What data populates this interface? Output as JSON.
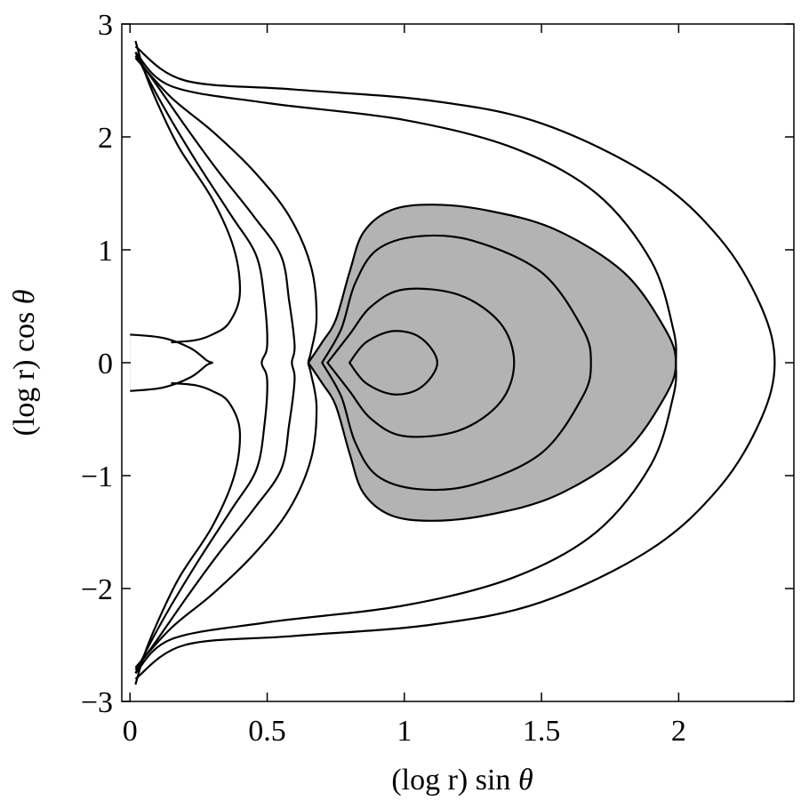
{
  "chart_data": {
    "type": "contour",
    "xlabel": "(log r) sin θ",
    "ylabel": "(log r) cos θ",
    "xlabel_parts": {
      "text": "(log r) sin ",
      "symbol": "θ"
    },
    "ylabel_parts": {
      "text": "(log r) cos ",
      "symbol": "θ"
    },
    "xlim": [
      -0.03,
      2.42
    ],
    "ylim": [
      -3.0,
      3.0
    ],
    "x_ticks": [
      0,
      0.5,
      1,
      1.5,
      2
    ],
    "x_tick_labels": [
      "0",
      "0.5",
      "1",
      "1.5",
      "2"
    ],
    "y_ticks": [
      -3,
      -2,
      -1,
      0,
      1,
      2,
      3
    ],
    "y_tick_labels": [
      "−3",
      "−2",
      "−1",
      "0",
      "1",
      "2",
      "3"
    ],
    "grid": false,
    "colors": {
      "dark_region": "#4d4d4d",
      "light_region": "#b3b3b3",
      "line": "#000000"
    },
    "regions": [
      {
        "name": "dark-core",
        "fill": "#4d4d4d",
        "points": [
          [
            0,
            0.25
          ],
          [
            0.12,
            0.21
          ],
          [
            0.2,
            0.13
          ],
          [
            0.25,
            0
          ],
          [
            0.2,
            -0.13
          ],
          [
            0.12,
            -0.21
          ],
          [
            0,
            -0.25
          ]
        ]
      },
      {
        "name": "light-core-rim",
        "fill": "#ffffff",
        "points": [
          [
            0,
            0.25
          ],
          [
            0.15,
            0.22
          ],
          [
            0.24,
            0.12
          ],
          [
            0.28,
            0
          ],
          [
            0.24,
            -0.12
          ],
          [
            0.15,
            -0.22
          ],
          [
            0,
            -0.25
          ]
        ]
      },
      {
        "name": "shaded-trapped-region",
        "fill": "#b3b3b3",
        "points": [
          [
            0.65,
            0
          ],
          [
            0.7,
            0.18
          ],
          [
            0.75,
            0.38
          ],
          [
            0.8,
            0.8
          ],
          [
            0.85,
            1.15
          ],
          [
            0.95,
            1.35
          ],
          [
            1.1,
            1.4
          ],
          [
            1.3,
            1.35
          ],
          [
            1.55,
            1.18
          ],
          [
            1.8,
            0.8
          ],
          [
            1.95,
            0.3
          ],
          [
            1.99,
            0
          ],
          [
            1.95,
            -0.3
          ],
          [
            1.8,
            -0.8
          ],
          [
            1.55,
            -1.18
          ],
          [
            1.3,
            -1.35
          ],
          [
            1.1,
            -1.4
          ],
          [
            0.95,
            -1.35
          ],
          [
            0.85,
            -1.15
          ],
          [
            0.8,
            -0.8
          ],
          [
            0.75,
            -0.38
          ],
          [
            0.7,
            -0.18
          ],
          [
            0.65,
            0
          ]
        ]
      }
    ],
    "contours": [
      {
        "name": "innermost-loop",
        "points": [
          [
            0.8,
            0
          ],
          [
            0.86,
            0.18
          ],
          [
            0.96,
            0.28
          ],
          [
            1.06,
            0.22
          ],
          [
            1.12,
            0
          ],
          [
            1.06,
            -0.22
          ],
          [
            0.96,
            -0.28
          ],
          [
            0.86,
            -0.18
          ],
          [
            0.8,
            0
          ]
        ]
      },
      {
        "name": "inner-loop",
        "points": [
          [
            0.72,
            0
          ],
          [
            0.8,
            0.25
          ],
          [
            0.88,
            0.5
          ],
          [
            1.0,
            0.65
          ],
          [
            1.2,
            0.6
          ],
          [
            1.35,
            0.35
          ],
          [
            1.4,
            0
          ],
          [
            1.35,
            -0.35
          ],
          [
            1.2,
            -0.6
          ],
          [
            1.0,
            -0.65
          ],
          [
            0.88,
            -0.5
          ],
          [
            0.8,
            -0.25
          ],
          [
            0.72,
            0
          ]
        ]
      },
      {
        "name": "middle-loop",
        "points": [
          [
            0.7,
            0
          ],
          [
            0.77,
            0.3
          ],
          [
            0.82,
            0.7
          ],
          [
            0.9,
            1.0
          ],
          [
            1.05,
            1.12
          ],
          [
            1.25,
            1.08
          ],
          [
            1.5,
            0.8
          ],
          [
            1.65,
            0.3
          ],
          [
            1.68,
            0
          ],
          [
            1.65,
            -0.3
          ],
          [
            1.5,
            -0.8
          ],
          [
            1.25,
            -1.08
          ],
          [
            1.05,
            -1.12
          ],
          [
            0.9,
            -1.0
          ],
          [
            0.82,
            -0.7
          ],
          [
            0.77,
            -0.3
          ],
          [
            0.7,
            0
          ]
        ]
      },
      {
        "name": "separatrix-outline",
        "points": [
          [
            0.65,
            0
          ],
          [
            0.7,
            0.18
          ],
          [
            0.75,
            0.38
          ],
          [
            0.8,
            0.8
          ],
          [
            0.85,
            1.15
          ],
          [
            0.95,
            1.35
          ],
          [
            1.1,
            1.4
          ],
          [
            1.3,
            1.35
          ],
          [
            1.55,
            1.18
          ],
          [
            1.8,
            0.8
          ],
          [
            1.95,
            0.3
          ],
          [
            1.99,
            0
          ],
          [
            1.95,
            -0.3
          ],
          [
            1.8,
            -0.8
          ],
          [
            1.55,
            -1.18
          ],
          [
            1.3,
            -1.35
          ],
          [
            1.1,
            -1.4
          ],
          [
            0.95,
            -1.35
          ],
          [
            0.85,
            -1.15
          ],
          [
            0.8,
            -0.8
          ],
          [
            0.75,
            -0.38
          ],
          [
            0.7,
            -0.18
          ],
          [
            0.65,
            0
          ]
        ]
      },
      {
        "name": "dark-core-outline",
        "points": [
          [
            0,
            0.25
          ],
          [
            0.12,
            0.22
          ],
          [
            0.22,
            0.13
          ],
          [
            0.28,
            0.02
          ],
          [
            0.3,
            0
          ],
          [
            0.28,
            -0.02
          ],
          [
            0.22,
            -0.13
          ],
          [
            0.12,
            -0.22
          ],
          [
            0,
            -0.25
          ]
        ]
      },
      {
        "name": "outer-wrap-1",
        "points": [
          [
            0.02,
            2.85
          ],
          [
            0.05,
            2.6
          ],
          [
            0.1,
            2.3
          ],
          [
            0.18,
            1.9
          ],
          [
            0.3,
            1.45
          ],
          [
            0.38,
            1.0
          ],
          [
            0.4,
            0.6
          ],
          [
            0.36,
            0.35
          ],
          [
            0.3,
            0.25
          ],
          [
            0.24,
            0.2
          ],
          [
            0.15,
            0.18
          ]
        ]
      },
      {
        "name": "outer-wrap-1-lower",
        "points": [
          [
            0.02,
            -2.85
          ],
          [
            0.05,
            -2.6
          ],
          [
            0.1,
            -2.3
          ],
          [
            0.18,
            -1.9
          ],
          [
            0.3,
            -1.45
          ],
          [
            0.38,
            -1.0
          ],
          [
            0.4,
            -0.6
          ],
          [
            0.36,
            -0.35
          ],
          [
            0.3,
            -0.25
          ],
          [
            0.24,
            -0.2
          ],
          [
            0.15,
            -0.18
          ]
        ]
      },
      {
        "name": "outer-wrap-2",
        "points": [
          [
            0.02,
            2.75
          ],
          [
            0.07,
            2.5
          ],
          [
            0.15,
            2.15
          ],
          [
            0.25,
            1.75
          ],
          [
            0.37,
            1.3
          ],
          [
            0.46,
            0.95
          ],
          [
            0.49,
            0.55
          ],
          [
            0.5,
            0.15
          ],
          [
            0.48,
            0
          ],
          [
            0.5,
            -0.15
          ],
          [
            0.49,
            -0.55
          ],
          [
            0.46,
            -0.95
          ],
          [
            0.37,
            -1.3
          ],
          [
            0.25,
            -1.75
          ],
          [
            0.15,
            -2.15
          ],
          [
            0.07,
            -2.5
          ],
          [
            0.02,
            -2.75
          ]
        ]
      },
      {
        "name": "outer-wrap-3",
        "points": [
          [
            0.02,
            2.72
          ],
          [
            0.1,
            2.45
          ],
          [
            0.2,
            2.1
          ],
          [
            0.32,
            1.7
          ],
          [
            0.45,
            1.3
          ],
          [
            0.55,
            0.95
          ],
          [
            0.58,
            0.55
          ],
          [
            0.6,
            0.15
          ],
          [
            0.59,
            0
          ],
          [
            0.6,
            -0.15
          ],
          [
            0.58,
            -0.55
          ],
          [
            0.55,
            -0.95
          ],
          [
            0.45,
            -1.3
          ],
          [
            0.32,
            -1.7
          ],
          [
            0.2,
            -2.1
          ],
          [
            0.1,
            -2.45
          ],
          [
            0.02,
            -2.72
          ]
        ]
      },
      {
        "name": "outer-wrap-4",
        "points": [
          [
            0.02,
            2.7
          ],
          [
            0.15,
            2.35
          ],
          [
            0.3,
            2.05
          ],
          [
            0.45,
            1.7
          ],
          [
            0.58,
            1.3
          ],
          [
            0.66,
            0.85
          ],
          [
            0.68,
            0.4
          ],
          [
            0.66,
            0.1
          ],
          [
            0.65,
            0
          ],
          [
            0.66,
            -0.1
          ],
          [
            0.68,
            -0.4
          ],
          [
            0.66,
            -0.85
          ],
          [
            0.58,
            -1.3
          ],
          [
            0.45,
            -1.7
          ],
          [
            0.3,
            -2.05
          ],
          [
            0.15,
            -2.35
          ],
          [
            0.02,
            -2.7
          ]
        ]
      },
      {
        "name": "outer-envelope-1",
        "points": [
          [
            0.02,
            2.75
          ],
          [
            0.15,
            2.45
          ],
          [
            0.5,
            2.3
          ],
          [
            1.0,
            2.15
          ],
          [
            1.4,
            1.9
          ],
          [
            1.7,
            1.5
          ],
          [
            1.9,
            0.9
          ],
          [
            1.98,
            0.3
          ],
          [
            1.99,
            0
          ],
          [
            1.98,
            -0.3
          ],
          [
            1.9,
            -0.9
          ],
          [
            1.7,
            -1.5
          ],
          [
            1.4,
            -1.9
          ],
          [
            1.0,
            -2.15
          ],
          [
            0.5,
            -2.3
          ],
          [
            0.15,
            -2.45
          ],
          [
            0.02,
            -2.75
          ]
        ]
      },
      {
        "name": "outer-envelope-2",
        "points": [
          [
            0.02,
            2.8
          ],
          [
            0.2,
            2.5
          ],
          [
            0.6,
            2.42
          ],
          [
            1.1,
            2.32
          ],
          [
            1.5,
            2.12
          ],
          [
            1.9,
            1.65
          ],
          [
            2.15,
            1.1
          ],
          [
            2.3,
            0.5
          ],
          [
            2.35,
            0
          ],
          [
            2.3,
            -0.5
          ],
          [
            2.15,
            -1.1
          ],
          [
            1.9,
            -1.65
          ],
          [
            1.5,
            -2.12
          ],
          [
            1.1,
            -2.32
          ],
          [
            0.6,
            -2.42
          ],
          [
            0.2,
            -2.5
          ],
          [
            0.02,
            -2.8
          ]
        ]
      }
    ]
  }
}
